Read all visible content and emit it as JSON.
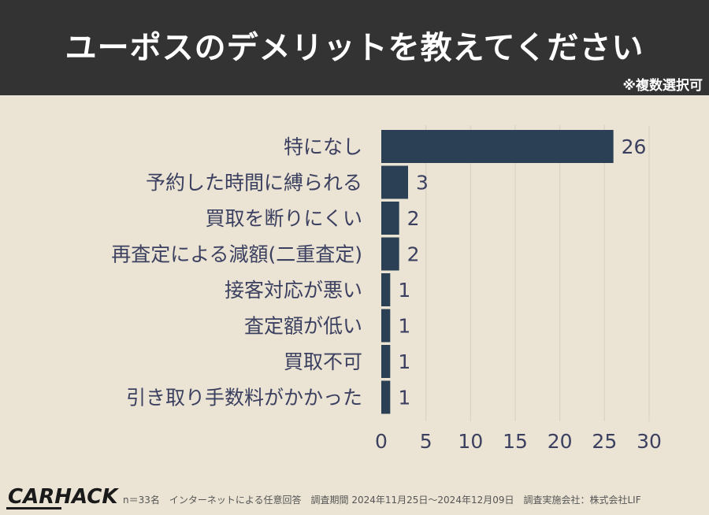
{
  "header": {
    "title": "ユーポスのデメリットを教えてください",
    "note": "※複数選択可"
  },
  "chart_data": {
    "type": "bar",
    "orientation": "horizontal",
    "categories": [
      "特になし",
      "予約した時間に縛られる",
      "買取を断りにくい",
      "再査定による減額(二重査定)",
      "接客対応が悪い",
      "査定額が低い",
      "買取不可",
      "引き取り手数料がかかった"
    ],
    "values": [
      26,
      3,
      2,
      2,
      1,
      1,
      1,
      1
    ],
    "xlim": [
      0,
      30
    ],
    "xticks": [
      "0",
      "5",
      "10",
      "15",
      "20",
      "25",
      "30"
    ],
    "grid": true,
    "bar_color": "#2b3f55"
  },
  "footer": {
    "logo": "CARHACK",
    "text": "n＝33名　インターネットによる任意回答　調査期間 2024年11月25日～2024年12月09日　調査実施会社：株式会社LIF"
  }
}
